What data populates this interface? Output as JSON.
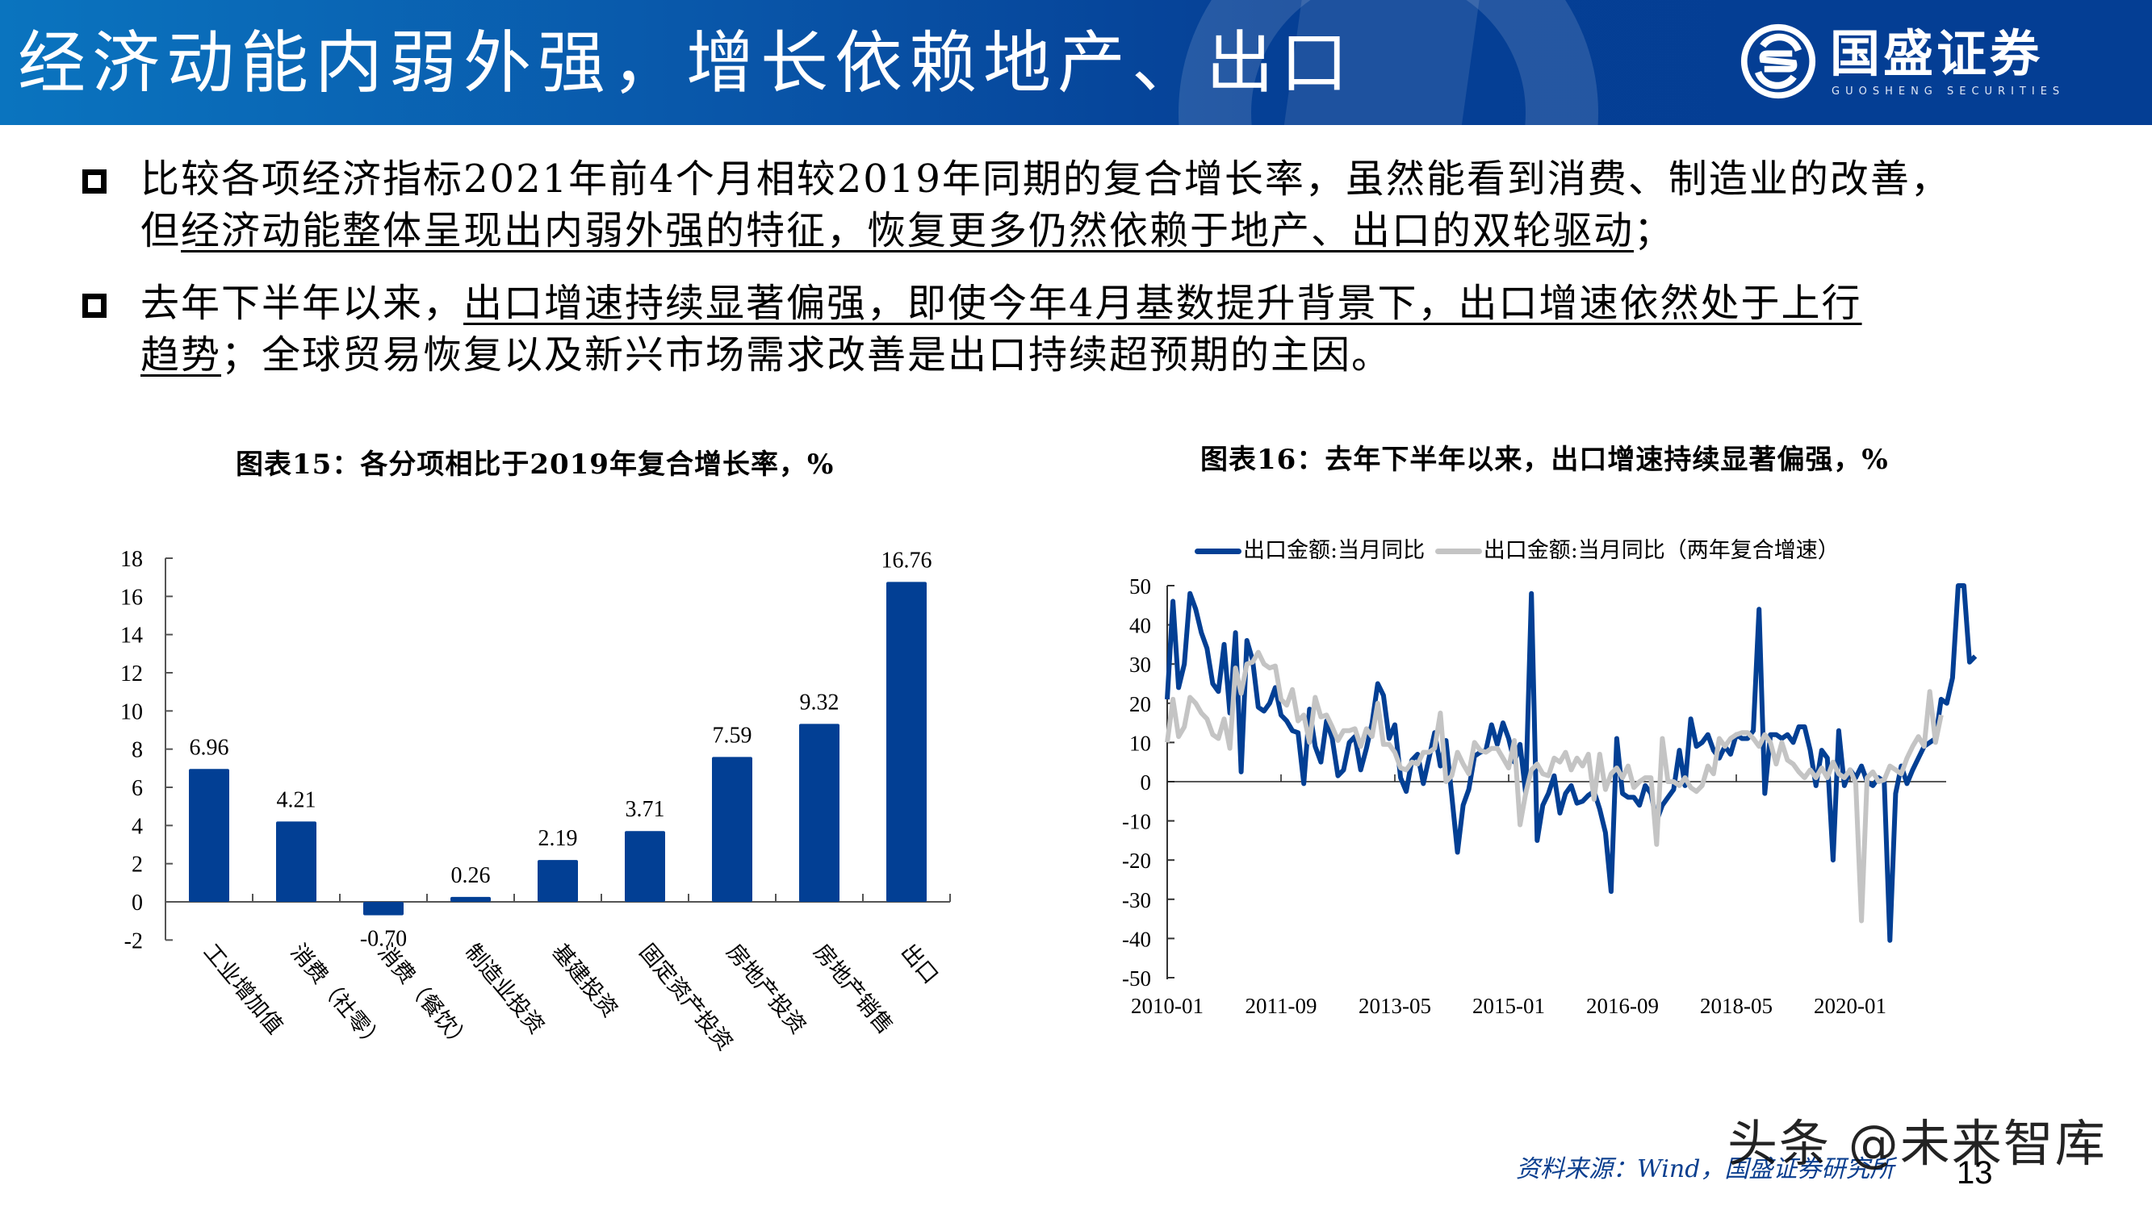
{
  "header": {
    "title": "经济动能内弱外强，增长依赖地产、出口",
    "logo_cn": "国盛证券",
    "logo_en": "GUOSHENG SECURITIES",
    "colors": {
      "gradient_start": "#0a74bf",
      "gradient_end": "#043e94"
    }
  },
  "bullets": [
    {
      "line1": "比较各项经济指标2021年前4个月相较2019年同期的复合增长率，虽然能看到消费、制造业的改善，",
      "line2_plain": "但",
      "line2_underlined": "经济动能整体呈现出内弱外强的特征，恢复更多仍然依赖于地产、出口的双轮驱动",
      "line2_tail": "；"
    },
    {
      "line1_plain": "去年下半年以来，",
      "line1_underlined": "出口增速持续显著偏强，即使今年4月基数提升背景下，出口增速依然处于上行",
      "line2_underlined": "趋势",
      "line2_tail": "；全球贸易恢复以及新兴市场需求改善是出口持续超预期的主因。"
    }
  ],
  "figure15": {
    "title": "图表15：各分项相比于2019年复合增长率，%"
  },
  "figure16": {
    "title": "图表16：去年下半年以来，出口增速持续显著偏强，%",
    "legend": [
      "出口金额:当月同比",
      "出口金额:当月同比（两年复合增速）"
    ]
  },
  "footer": {
    "source": "资料来源：Wind，国盛证券研究所",
    "page_number": "13",
    "watermark": "头条 @未来智库"
  },
  "chart_data": [
    {
      "type": "bar",
      "title": "图表15：各分项相比于2019年复合增长率，%",
      "categories": [
        "工业增加值",
        "消费（社零）",
        "消费（餐饮）",
        "制造业投资",
        "基建投资",
        "固定资产投资",
        "房地产投资",
        "房地产销售",
        "出口"
      ],
      "values": [
        6.96,
        4.21,
        -0.7,
        0.26,
        2.19,
        3.71,
        7.59,
        9.32,
        16.76
      ],
      "labels": [
        "6.96",
        "4.21",
        "-0.70",
        "0.26",
        "2.19",
        "3.71",
        "7.59",
        "9.32",
        "16.76"
      ],
      "yticks": [
        18,
        16,
        14,
        12,
        10,
        8,
        6,
        4,
        2,
        0,
        -2
      ],
      "ylim": [
        -2,
        18
      ],
      "color": "#023f94",
      "xlabel": "",
      "ylabel": "",
      "grid": false
    },
    {
      "type": "line",
      "title": "图表16：去年下半年以来，出口增速持续显著偏强，%",
      "x_start": "2010-01",
      "x_end": "2021-04",
      "frequency": "monthly",
      "xticks": [
        "2010-01",
        "2011-09",
        "2013-05",
        "2015-01",
        "2016-09",
        "2018-05",
        "2020-01"
      ],
      "yticks": [
        50,
        40,
        30,
        20,
        10,
        0,
        -10,
        -20,
        -30,
        -40,
        -50
      ],
      "ylim": [
        -50,
        50
      ],
      "legend_position": "top",
      "grid": false,
      "series": [
        {
          "name": "出口金额:当月同比",
          "color": "#023f94",
          "values": [
            21,
            46,
            24,
            30,
            48,
            44,
            38,
            34,
            25,
            23,
            35,
            17.5,
            38,
            2.5,
            36,
            31,
            19,
            18,
            20,
            24,
            17,
            15.5,
            13,
            12.5,
            -0.5,
            18.5,
            9,
            5,
            15.5,
            11,
            1.5,
            3,
            10,
            11.5,
            3,
            8.5,
            15,
            25,
            22,
            11,
            14.5,
            1,
            -2.5,
            5.5,
            7,
            -0.5,
            6,
            12.5,
            4,
            10.5,
            -3.5,
            -18,
            -6,
            -2,
            6.5,
            7.5,
            8,
            14.5,
            9.5,
            15,
            11,
            5,
            9.5,
            -3,
            48,
            -15,
            -6,
            -3,
            1.5,
            -8,
            -3,
            -1,
            -5.5,
            -5,
            -3.5,
            -2.5,
            -7,
            -13,
            -28,
            11,
            -3,
            -4,
            -4,
            -6,
            -1,
            -3,
            -10,
            -6,
            -4,
            -2,
            8,
            -1,
            16,
            9,
            10,
            12,
            8,
            6,
            9,
            7,
            12,
            11,
            11,
            13,
            44,
            -3,
            12,
            12,
            11,
            12,
            10,
            14,
            14,
            8,
            -1,
            8,
            6,
            -20,
            13,
            -1,
            3,
            1,
            4,
            0,
            -1,
            1,
            0,
            -40.5,
            -3,
            4,
            -0.5,
            3,
            6,
            9,
            10,
            11,
            21,
            20,
            26.5,
            50,
            50,
            30.5,
            32
          ],
          "note": "values approximated from plot trace; peaks above 50 are clipped at the axis top"
        },
        {
          "name": "出口金额:当月同比（两年复合增速）",
          "color": "#c4c4c4",
          "values": [
            10,
            21,
            11.5,
            14,
            21.5,
            20,
            17.5,
            16,
            12,
            11,
            16,
            8.5,
            29,
            22.5,
            30,
            30.5,
            33,
            30,
            29,
            29.5,
            21,
            19.5,
            23.5,
            15.5,
            17,
            10,
            21.5,
            16.5,
            17,
            14,
            10.5,
            13,
            13,
            13.5,
            9,
            13.5,
            11.5,
            20,
            9.5,
            9.5,
            7.5,
            3.5,
            3,
            5,
            4.5,
            7.5,
            7.5,
            8.5,
            17.5,
            0,
            1.5,
            7.5,
            4.5,
            2,
            10,
            8,
            7.5,
            8.5,
            8.5,
            6,
            3.5,
            10.5,
            -11,
            -3,
            3,
            4.5,
            2,
            1.5,
            6,
            5,
            7.5,
            3,
            6,
            4,
            7,
            -4.5,
            7,
            -2,
            2,
            3.5,
            1,
            4,
            -1.5,
            0,
            1,
            1,
            -16,
            11,
            0,
            0,
            -1,
            1,
            -1.5,
            -2.5,
            -1,
            4,
            2,
            11,
            9,
            11,
            12,
            12.5,
            12.5,
            11,
            9,
            12,
            10,
            4.5,
            10,
            5.5,
            4.5,
            2.5,
            1,
            3,
            1,
            3.5,
            1,
            5,
            2,
            1,
            3,
            -0.5,
            -35.5,
            1,
            2.5,
            0,
            0.5,
            4,
            3,
            2,
            6,
            9,
            11.5,
            9,
            23,
            10,
            17
          ]
        }
      ]
    }
  ]
}
